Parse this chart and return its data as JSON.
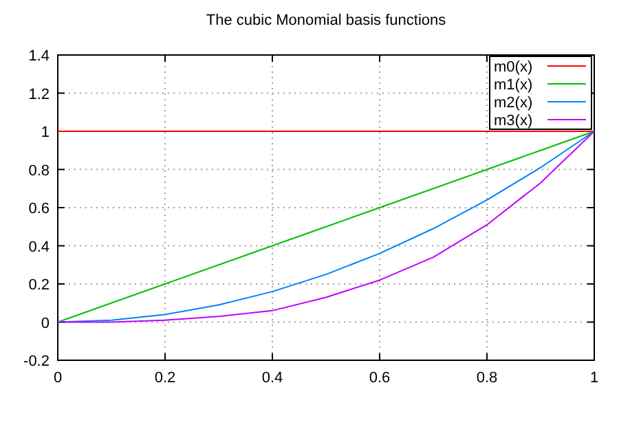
{
  "chart_data": {
    "type": "line",
    "title": "The cubic Monomial basis functions",
    "x": [
      0,
      0.1,
      0.2,
      0.3,
      0.4,
      0.5,
      0.6,
      0.7,
      0.8,
      0.9,
      1
    ],
    "series": [
      {
        "name": "m0(x)",
        "color": "#ff0000",
        "values": [
          1,
          1,
          1,
          1,
          1,
          1,
          1,
          1,
          1,
          1,
          1
        ]
      },
      {
        "name": "m1(x)",
        "color": "#00c000",
        "values": [
          0,
          0.1,
          0.2,
          0.3,
          0.4,
          0.5,
          0.6,
          0.7,
          0.8,
          0.9,
          1
        ]
      },
      {
        "name": "m2(x)",
        "color": "#0080ff",
        "values": [
          0,
          0.01,
          0.04,
          0.09,
          0.16,
          0.25,
          0.36,
          0.49,
          0.64,
          0.81,
          1
        ]
      },
      {
        "name": "m3(x)",
        "color": "#c000ff",
        "values": [
          0,
          0,
          0.01,
          0.03,
          0.06,
          0.13,
          0.22,
          0.34,
          0.51,
          0.73,
          1
        ]
      }
    ],
    "xlim": [
      0,
      1
    ],
    "xticks": [
      0,
      0.2,
      0.4,
      0.6,
      0.8,
      1
    ],
    "ylim": [
      -0.2,
      1.4
    ],
    "yticks": [
      -0.2,
      0,
      0.2,
      0.4,
      0.6,
      0.8,
      1,
      1.2,
      1.4
    ],
    "grid": true,
    "legend": "top right",
    "marker": "none",
    "line_style": "solid"
  }
}
